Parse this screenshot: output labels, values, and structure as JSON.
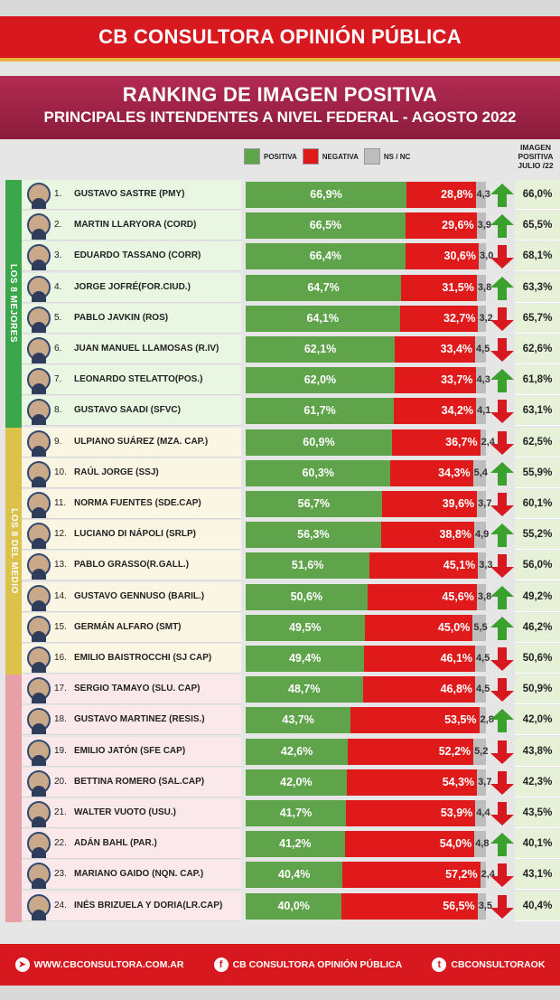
{
  "header": {
    "brand": "CB CONSULTORA OPINIÓN PÚBLICA",
    "title": "RANKING DE IMAGEN POSITIVA",
    "subtitle": "PRINCIPALES INTENDENTES A NIVEL FEDERAL - AGOSTO 2022"
  },
  "legend": {
    "positiva": "POSITIVA",
    "negativa": "NEGATIVA",
    "nsnc": "NS / NC"
  },
  "july_header": [
    "IMAGEN",
    "POSITIVA",
    "JULIO /22"
  ],
  "groups": [
    {
      "label": "LOS 8 MEJORES",
      "start": 0,
      "count": 8,
      "color": "#3aa84a",
      "bg": "#e9f6e2"
    },
    {
      "label": "LOS 8 DEL MEDIO",
      "start": 8,
      "count": 8,
      "color": "#dcc24a",
      "bg": "#fbf6e3"
    },
    {
      "label": "",
      "start": 16,
      "count": 8,
      "color": "#e8a0a8",
      "bg": "#fbe8ea"
    }
  ],
  "colors": {
    "positive": "#5fa34a",
    "negative": "#e01a1a",
    "nsnc": "#bdbdbd",
    "up": "#3aa12c",
    "down": "#d7191f"
  },
  "chart_data": {
    "type": "bar",
    "stacked": true,
    "orientation": "horizontal",
    "title": "RANKING DE IMAGEN POSITIVA",
    "series_names": [
      "POSITIVA",
      "NEGATIVA",
      "NS / NC"
    ],
    "rows": [
      {
        "rank": "1.",
        "name": "GUSTAVO SASTRE (PMY)",
        "pos": 66.9,
        "pos_label": "66,9%",
        "neg": 28.8,
        "neg_label": "28,8%",
        "ns": 4.3,
        "ns_label": "4,3",
        "trend": "up",
        "july": "66,0%"
      },
      {
        "rank": "2.",
        "name": "MARTIN LLARYORA (CORD)",
        "pos": 66.5,
        "pos_label": "66,5%",
        "neg": 29.6,
        "neg_label": "29,6%",
        "ns": 3.9,
        "ns_label": "3,9",
        "trend": "up",
        "july": "65,5%"
      },
      {
        "rank": "3.",
        "name": "EDUARDO TASSANO (CORR)",
        "pos": 66.4,
        "pos_label": "66,4%",
        "neg": 30.6,
        "neg_label": "30,6%",
        "ns": 3.0,
        "ns_label": "3,0",
        "trend": "down",
        "july": "68,1%"
      },
      {
        "rank": "4.",
        "name": "JORGE JOFRÉ(FOR.CIUD.)",
        "pos": 64.7,
        "pos_label": "64,7%",
        "neg": 31.5,
        "neg_label": "31,5%",
        "ns": 3.8,
        "ns_label": "3,8",
        "trend": "up",
        "july": "63,3%"
      },
      {
        "rank": "5.",
        "name": "PABLO JAVKIN (ROS)",
        "pos": 64.1,
        "pos_label": "64,1%",
        "neg": 32.7,
        "neg_label": "32,7%",
        "ns": 3.2,
        "ns_label": "3,2",
        "trend": "down",
        "july": "65,7%"
      },
      {
        "rank": "6.",
        "name": "JUAN MANUEL LLAMOSAS (R.IV)",
        "pos": 62.1,
        "pos_label": "62,1%",
        "neg": 33.4,
        "neg_label": "33,4%",
        "ns": 4.5,
        "ns_label": "4,5",
        "trend": "down",
        "july": "62,6%"
      },
      {
        "rank": "7.",
        "name": "LEONARDO STELATTO(POS.)",
        "pos": 62.0,
        "pos_label": "62,0%",
        "neg": 33.7,
        "neg_label": "33,7%",
        "ns": 4.3,
        "ns_label": "4,3",
        "trend": "up",
        "july": "61,8%"
      },
      {
        "rank": "8.",
        "name": "GUSTAVO SAADI (SFVC)",
        "pos": 61.7,
        "pos_label": "61,7%",
        "neg": 34.2,
        "neg_label": "34,2%",
        "ns": 4.1,
        "ns_label": "4,1",
        "trend": "down",
        "july": "63,1%"
      },
      {
        "rank": "9.",
        "name": "ULPIANO SUÁREZ (MZA. CAP.)",
        "pos": 60.9,
        "pos_label": "60,9%",
        "neg": 36.7,
        "neg_label": "36,7%",
        "ns": 2.4,
        "ns_label": "2,4",
        "trend": "down",
        "july": "62,5%"
      },
      {
        "rank": "10.",
        "name": "RAÚL JORGE (SSJ)",
        "pos": 60.3,
        "pos_label": "60,3%",
        "neg": 34.3,
        "neg_label": "34,3%",
        "ns": 5.4,
        "ns_label": "5,4",
        "trend": "up",
        "july": "55,9%"
      },
      {
        "rank": "11.",
        "name": "NORMA FUENTES (SDE.CAP)",
        "pos": 56.7,
        "pos_label": "56,7%",
        "neg": 39.6,
        "neg_label": "39,6%",
        "ns": 3.7,
        "ns_label": "3,7",
        "trend": "down",
        "july": "60,1%"
      },
      {
        "rank": "12.",
        "name": "LUCIANO DI NÁPOLI (SRLP)",
        "pos": 56.3,
        "pos_label": "56,3%",
        "neg": 38.8,
        "neg_label": "38,8%",
        "ns": 4.9,
        "ns_label": "4,9",
        "trend": "up",
        "july": "55,2%"
      },
      {
        "rank": "13.",
        "name": "PABLO GRASSO(R.GALL.)",
        "pos": 51.6,
        "pos_label": "51,6%",
        "neg": 45.1,
        "neg_label": "45,1%",
        "ns": 3.3,
        "ns_label": "3,3",
        "trend": "down",
        "july": "56,0%"
      },
      {
        "rank": "14.",
        "name": "GUSTAVO GENNUSO (BARIL.)",
        "pos": 50.6,
        "pos_label": "50,6%",
        "neg": 45.6,
        "neg_label": "45,6%",
        "ns": 3.8,
        "ns_label": "3,8",
        "trend": "up",
        "july": "49,2%"
      },
      {
        "rank": "15.",
        "name": "GERMÁN ALFARO (SMT)",
        "pos": 49.5,
        "pos_label": "49,5%",
        "neg": 45.0,
        "neg_label": "45,0%",
        "ns": 5.5,
        "ns_label": "5,5",
        "trend": "up",
        "july": "46,2%"
      },
      {
        "rank": "16.",
        "name": "EMILIO BAISTROCCHI (SJ CAP)",
        "pos": 49.4,
        "pos_label": "49,4%",
        "neg": 46.1,
        "neg_label": "46,1%",
        "ns": 4.5,
        "ns_label": "4,5",
        "trend": "down",
        "july": "50,6%"
      },
      {
        "rank": "17.",
        "name": "SERGIO TAMAYO (SLU. CAP)",
        "pos": 48.7,
        "pos_label": "48,7%",
        "neg": 46.8,
        "neg_label": "46,8%",
        "ns": 4.5,
        "ns_label": "4,5",
        "trend": "down",
        "july": "50,9%"
      },
      {
        "rank": "18.",
        "name": "GUSTAVO MARTINEZ (RESIS.)",
        "pos": 43.7,
        "pos_label": "43,7%",
        "neg": 53.5,
        "neg_label": "53,5%",
        "ns": 2.8,
        "ns_label": "2,8",
        "trend": "up",
        "july": "42,0%"
      },
      {
        "rank": "19.",
        "name": "EMILIO JATÓN (SFE CAP)",
        "pos": 42.6,
        "pos_label": "42,6%",
        "neg": 52.2,
        "neg_label": "52,2%",
        "ns": 5.2,
        "ns_label": "5,2",
        "trend": "down",
        "july": "43,8%"
      },
      {
        "rank": "20.",
        "name": "BETTINA ROMERO (SAL.CAP)",
        "pos": 42.0,
        "pos_label": "42,0%",
        "neg": 54.3,
        "neg_label": "54,3%",
        "ns": 3.7,
        "ns_label": "3,7",
        "trend": "down",
        "july": "42,3%"
      },
      {
        "rank": "21.",
        "name": "WALTER VUOTO (USU.)",
        "pos": 41.7,
        "pos_label": "41,7%",
        "neg": 53.9,
        "neg_label": "53,9%",
        "ns": 4.4,
        "ns_label": "4,4",
        "trend": "down",
        "july": "43,5%"
      },
      {
        "rank": "22.",
        "name": "ADÁN BAHL (PAR.)",
        "pos": 41.2,
        "pos_label": "41,2%",
        "neg": 54.0,
        "neg_label": "54,0%",
        "ns": 4.8,
        "ns_label": "4,8",
        "trend": "up",
        "july": "40,1%"
      },
      {
        "rank": "23.",
        "name": "MARIANO GAIDO (NQN. CAP.)",
        "pos": 40.4,
        "pos_label": "40,4%",
        "neg": 57.2,
        "neg_label": "57,2%",
        "ns": 2.4,
        "ns_label": "2,4",
        "trend": "down",
        "july": "43,1%"
      },
      {
        "rank": "24.",
        "name": "INÉS BRIZUELA Y DORIA(LR.CAP)",
        "pos": 40.0,
        "pos_label": "40,0%",
        "neg": 56.5,
        "neg_label": "56,5%",
        "ns": 3.5,
        "ns_label": "3,5",
        "trend": "down",
        "july": "40,4%"
      }
    ]
  },
  "footer": {
    "web": "WWW.CBCONSULTORA.COM.AR",
    "facebook": "CB CONSULTORA OPINIÓN PÚBLICA",
    "twitter": "CBCONSULTORAOK",
    "web_icon": "cursor-icon",
    "facebook_icon": "facebook-icon",
    "twitter_icon": "twitter-icon"
  }
}
